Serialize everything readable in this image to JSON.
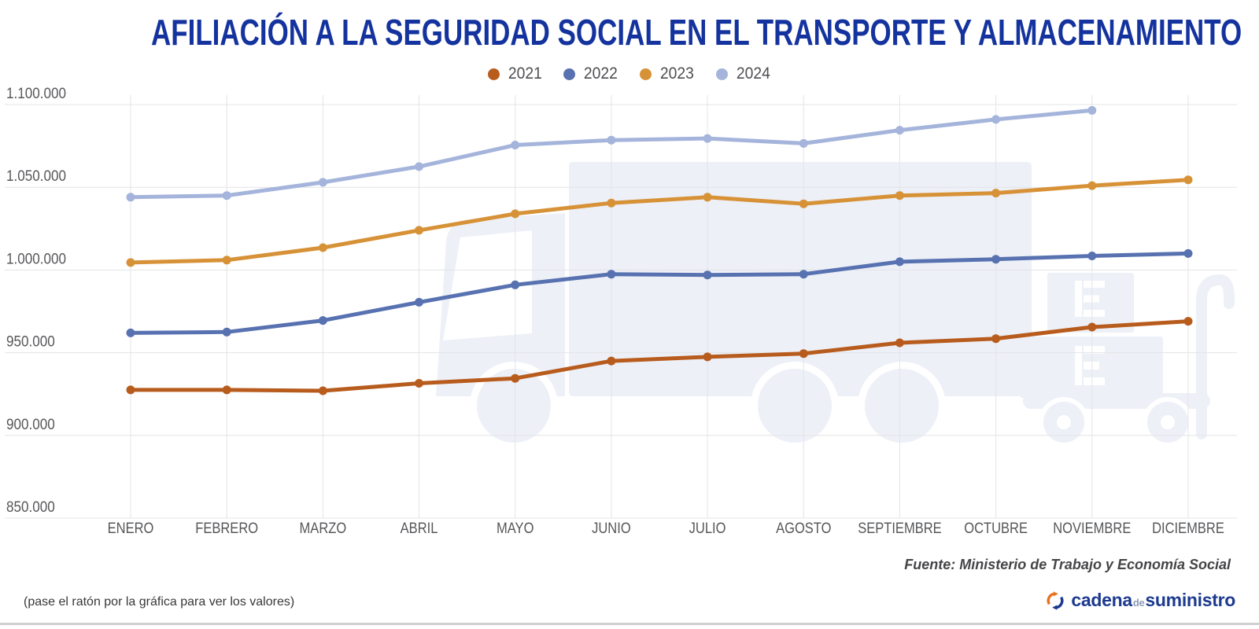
{
  "title": "AFILIACIÓN A LA SEGURIDAD SOCIAL EN EL TRANSPORTE Y ALMACENAMIENTO",
  "chart_data": {
    "type": "line",
    "title": "AFILIACIÓN A LA SEGURIDAD SOCIAL EN EL TRANSPORTE Y ALMACENAMIENTO",
    "categories": [
      "ENERO",
      "FEBRERO",
      "MARZO",
      "ABRIL",
      "MAYO",
      "JUNIO",
      "JULIO",
      "AGOSTO",
      "SEPTIEMBRE",
      "OCTUBRE",
      "NOVIEMBRE",
      "DICIEMBRE"
    ],
    "series": [
      {
        "name": "2021",
        "color": "#b85c1e",
        "values": [
          927500,
          927500,
          927000,
          931500,
          934500,
          945000,
          947500,
          949500,
          956000,
          958500,
          965500,
          969000
        ]
      },
      {
        "name": "2022",
        "color": "#5872b1",
        "values": [
          962000,
          962500,
          969500,
          980500,
          991000,
          997500,
          997000,
          997500,
          1005000,
          1006500,
          1008500,
          1010000
        ]
      },
      {
        "name": "2023",
        "color": "#d79238",
        "values": [
          1004500,
          1006000,
          1013500,
          1024000,
          1034000,
          1040500,
          1044000,
          1040000,
          1045000,
          1046500,
          1051000,
          1054500
        ]
      },
      {
        "name": "2024",
        "color": "#a4b4db",
        "values": [
          1044000,
          1045000,
          1053000,
          1062500,
          1075500,
          1078500,
          1079500,
          1076500,
          1084500,
          1091000,
          1096500,
          null
        ]
      }
    ],
    "ylim": [
      850000,
      1100000
    ],
    "y_ticks": [
      {
        "value": 1100000,
        "label": "1.100.000"
      },
      {
        "value": 1050000,
        "label": "1.050.000"
      },
      {
        "value": 1000000,
        "label": "1.000.000"
      },
      {
        "value": 950000,
        "label": "950.000"
      },
      {
        "value": 900000,
        "label": "900.000"
      },
      {
        "value": 850000,
        "label": "850.000"
      }
    ],
    "grid": true,
    "legend_position": "top"
  },
  "footer": {
    "source": "Fuente: Ministerio de Trabajo y Economía Social",
    "hint": "(pase el ratón por la gráfica para ver los valores)",
    "logo": {
      "cadena": "cadena",
      "de": "de",
      "suministro": "suministro"
    }
  },
  "colors": {
    "title": "#14339e",
    "gridline": "#e3e4e6",
    "axis_label": "#56575a",
    "watermark": "#edf0f7",
    "brand_blue": "#1d3a8f",
    "brand_orange": "#e8731e"
  }
}
